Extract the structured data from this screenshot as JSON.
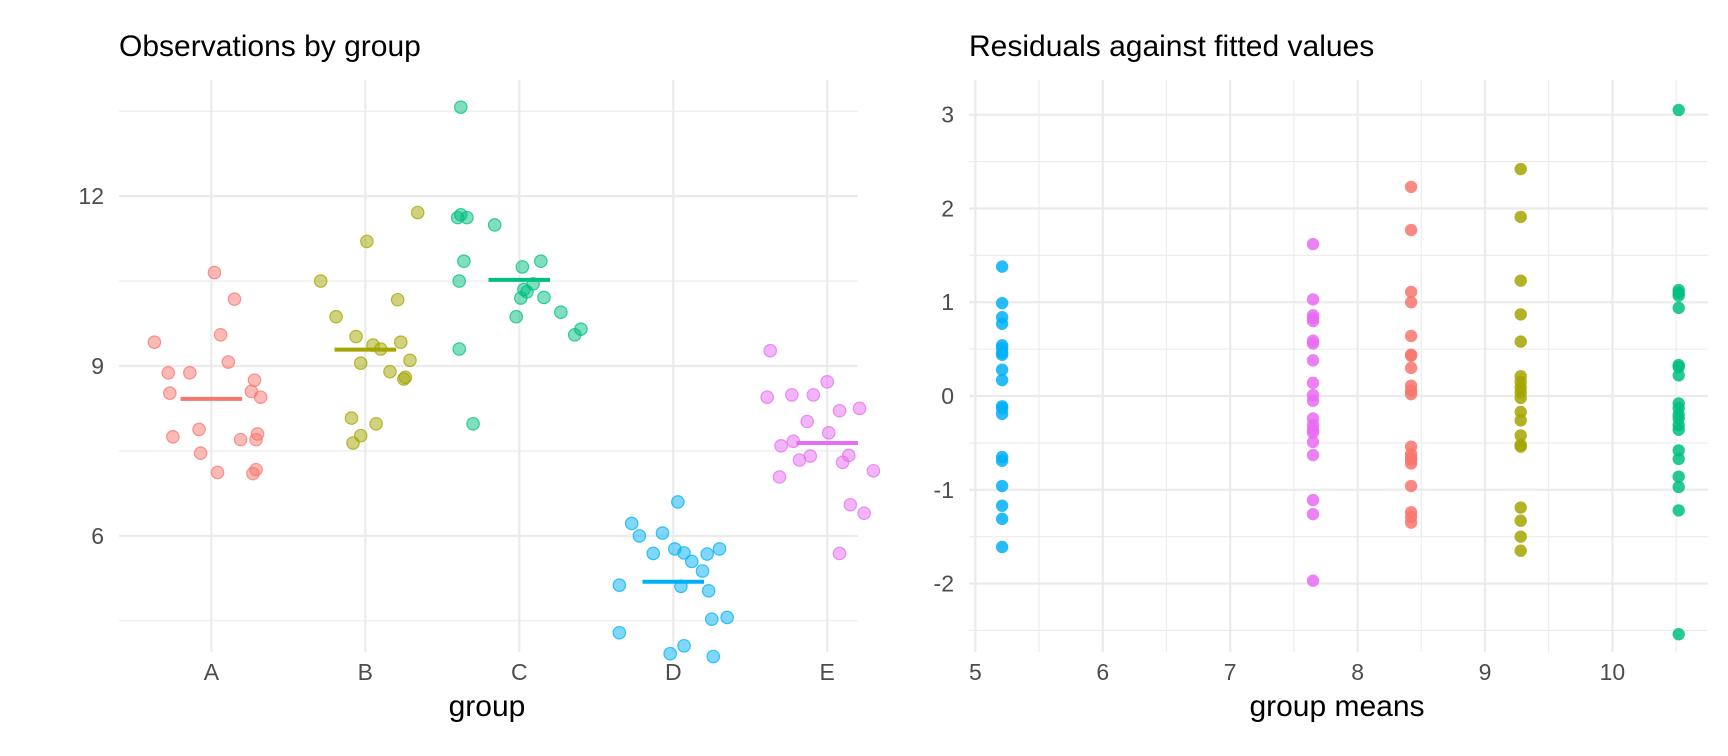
{
  "colors": {
    "A": "#F8766D",
    "B": "#A3A500",
    "C": "#00BF7D",
    "D": "#00B0F6",
    "E": "#E76BF3"
  },
  "chart_data": [
    {
      "type": "scatter",
      "subtype": "jitter-strip",
      "title": "Observations by group",
      "xlabel": "group",
      "ylabel": "",
      "categories": [
        "A",
        "B",
        "C",
        "D",
        "E"
      ],
      "ylim": [
        3.95,
        14.05
      ],
      "y_ticks": [
        6,
        9,
        12
      ],
      "y_tick_labels": [
        "6",
        "9",
        "12"
      ],
      "grid": true,
      "point_opacity": 0.5,
      "group_mean_segments": true,
      "series": [
        {
          "name": "A",
          "mean": 8.42,
          "points": [
            [
              -0.37,
              9.42
            ],
            [
              -0.28,
              8.88
            ],
            [
              -0.27,
              8.52
            ],
            [
              -0.25,
              7.75
            ],
            [
              -0.14,
              8.88
            ],
            [
              -0.08,
              7.88
            ],
            [
              -0.07,
              7.46
            ],
            [
              0.02,
              10.65
            ],
            [
              0.04,
              7.12
            ],
            [
              0.06,
              9.55
            ],
            [
              0.11,
              9.07
            ],
            [
              0.15,
              10.18
            ],
            [
              0.19,
              7.7
            ],
            [
              0.26,
              8.55
            ],
            [
              0.27,
              7.1
            ],
            [
              0.28,
              8.75
            ],
            [
              0.29,
              7.7
            ],
            [
              0.29,
              7.17
            ],
            [
              0.3,
              7.8
            ],
            [
              0.32,
              8.45
            ]
          ]
        },
        {
          "name": "B",
          "mean": 9.29,
          "points": [
            [
              -0.29,
              10.5
            ],
            [
              -0.19,
              9.87
            ],
            [
              -0.09,
              8.08
            ],
            [
              -0.08,
              7.64
            ],
            [
              -0.06,
              9.52
            ],
            [
              -0.03,
              7.77
            ],
            [
              -0.03,
              9.05
            ],
            [
              0.01,
              11.2
            ],
            [
              0.05,
              9.37
            ],
            [
              0.07,
              7.98
            ],
            [
              0.1,
              9.3
            ],
            [
              0.16,
              8.9
            ],
            [
              0.21,
              10.17
            ],
            [
              0.23,
              9.42
            ],
            [
              0.25,
              8.77
            ],
            [
              0.26,
              8.8
            ],
            [
              0.29,
              9.1
            ],
            [
              0.34,
              11.71
            ]
          ]
        },
        {
          "name": "C",
          "mean": 10.52,
          "points": [
            [
              -0.4,
              11.62
            ],
            [
              -0.39,
              9.3
            ],
            [
              -0.39,
              10.5
            ],
            [
              -0.38,
              13.57
            ],
            [
              -0.38,
              11.67
            ],
            [
              -0.36,
              10.85
            ],
            [
              -0.34,
              11.62
            ],
            [
              -0.3,
              7.98
            ],
            [
              -0.16,
              11.49
            ],
            [
              -0.02,
              9.87
            ],
            [
              0.01,
              10.2
            ],
            [
              0.02,
              10.75
            ],
            [
              0.03,
              10.35
            ],
            [
              0.05,
              10.31
            ],
            [
              0.09,
              10.45
            ],
            [
              0.14,
              10.85
            ],
            [
              0.16,
              10.21
            ],
            [
              0.27,
              9.95
            ],
            [
              0.36,
              9.55
            ],
            [
              0.4,
              9.65
            ]
          ]
        },
        {
          "name": "D",
          "mean": 5.19,
          "points": [
            [
              -0.35,
              5.13
            ],
            [
              -0.35,
              4.29
            ],
            [
              -0.27,
              6.22
            ],
            [
              -0.22,
              6.0
            ],
            [
              -0.13,
              5.69
            ],
            [
              -0.07,
              6.05
            ],
            [
              -0.02,
              3.92
            ],
            [
              0.01,
              5.77
            ],
            [
              0.03,
              6.6
            ],
            [
              0.05,
              5.11
            ],
            [
              0.07,
              4.06
            ],
            [
              0.07,
              5.7
            ],
            [
              0.12,
              5.55
            ],
            [
              0.19,
              5.38
            ],
            [
              0.22,
              5.68
            ],
            [
              0.23,
              5.03
            ],
            [
              0.25,
              4.53
            ],
            [
              0.26,
              3.87
            ],
            [
              0.3,
              5.77
            ],
            [
              0.35,
              4.56
            ]
          ]
        },
        {
          "name": "E",
          "mean": 7.64,
          "points": [
            [
              -0.39,
              8.45
            ],
            [
              -0.37,
              9.27
            ],
            [
              -0.31,
              7.04
            ],
            [
              -0.3,
              7.59
            ],
            [
              -0.23,
              8.49
            ],
            [
              -0.22,
              7.67
            ],
            [
              -0.18,
              7.34
            ],
            [
              -0.13,
              8.02
            ],
            [
              -0.11,
              7.41
            ],
            [
              -0.09,
              8.49
            ],
            [
              0.0,
              8.72
            ],
            [
              0.01,
              7.82
            ],
            [
              0.08,
              8.21
            ],
            [
              0.08,
              5.69
            ],
            [
              0.1,
              7.3
            ],
            [
              0.14,
              7.42
            ],
            [
              0.15,
              6.55
            ],
            [
              0.21,
              8.25
            ],
            [
              0.24,
              6.4
            ],
            [
              0.3,
              7.15
            ]
          ]
        }
      ]
    },
    {
      "type": "scatter",
      "title": "Residuals against fitted values",
      "xlabel": "group means",
      "ylabel": "",
      "xlim": [
        4.95,
        10.75
      ],
      "ylim": [
        -2.73,
        3.37
      ],
      "x_ticks": [
        5,
        6,
        7,
        8,
        9,
        10
      ],
      "x_tick_labels": [
        "5",
        "6",
        "7",
        "8",
        "9",
        "10"
      ],
      "y_ticks": [
        -2,
        -1,
        0,
        1,
        2,
        3
      ],
      "y_tick_labels": [
        "-2",
        "-1",
        "0",
        "1",
        "2",
        "3"
      ],
      "grid": true,
      "point_opacity": 0.85,
      "series": [
        {
          "name": "D",
          "x": 5.21,
          "y": [
            1.38,
            0.99,
            0.84,
            0.77,
            0.54,
            0.51,
            0.46,
            0.44,
            0.28,
            0.17,
            -0.11,
            -0.13,
            -0.19,
            -0.65,
            -0.69,
            -0.96,
            -1.17,
            -1.31,
            -1.61
          ]
        },
        {
          "name": "E",
          "x": 7.65,
          "y": [
            1.62,
            1.03,
            0.86,
            0.83,
            0.8,
            0.59,
            0.56,
            0.38,
            0.14,
            0.01,
            -0.05,
            -0.24,
            -0.31,
            -0.36,
            -0.39,
            -0.49,
            -0.63,
            -1.11,
            -1.26,
            -1.97
          ]
        },
        {
          "name": "A",
          "x": 8.42,
          "y": [
            2.23,
            1.77,
            1.11,
            1.0,
            0.64,
            0.44,
            0.43,
            0.3,
            0.11,
            0.06,
            0.02,
            -0.54,
            -0.62,
            -0.66,
            -0.68,
            -0.72,
            -0.96,
            -1.24,
            -1.29,
            -1.35
          ]
        },
        {
          "name": "B",
          "x": 9.28,
          "y": [
            2.42,
            1.91,
            1.23,
            0.87,
            0.58,
            0.21,
            0.15,
            0.09,
            0.04,
            -0.02,
            -0.17,
            -0.26,
            -0.42,
            -0.52,
            -0.54,
            -1.19,
            -1.33,
            -1.5,
            -1.65
          ]
        },
        {
          "name": "C",
          "x": 10.52,
          "y": [
            3.05,
            1.13,
            1.1,
            1.07,
            0.94,
            0.33,
            0.31,
            0.22,
            -0.08,
            -0.13,
            -0.2,
            -0.24,
            -0.31,
            -0.36,
            -0.58,
            -0.67,
            -0.86,
            -0.97,
            -1.22,
            -2.54
          ]
        }
      ]
    }
  ]
}
